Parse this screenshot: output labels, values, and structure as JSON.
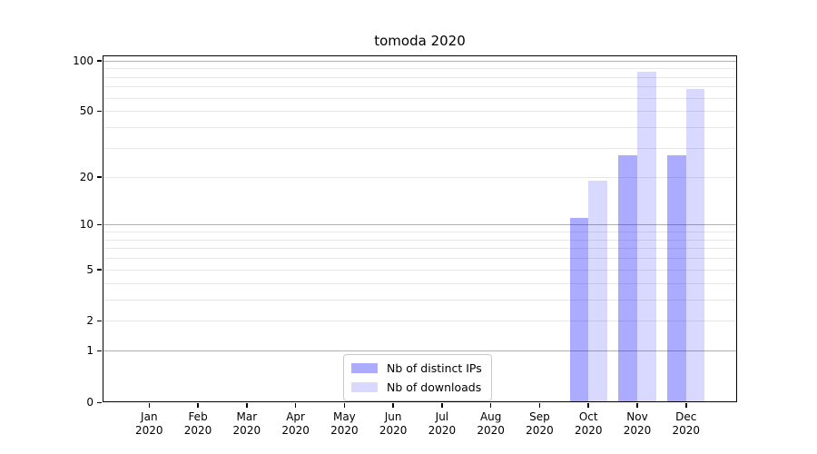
{
  "title": "tomoda 2020",
  "chart_data": {
    "type": "bar",
    "title": "tomoda 2020",
    "categories": [
      "Jan 2020",
      "Feb 2020",
      "Mar 2020",
      "Apr 2020",
      "May 2020",
      "Jun 2020",
      "Jul 2020",
      "Aug 2020",
      "Sep 2020",
      "Oct 2020",
      "Nov 2020",
      "Dec 2020"
    ],
    "series": [
      {
        "name": "Nb of distinct IPs",
        "color": "rgba(0,0,255,0.33)",
        "values": [
          null,
          null,
          null,
          null,
          null,
          null,
          null,
          null,
          null,
          11,
          27,
          27
        ]
      },
      {
        "name": "Nb of downloads",
        "color": "rgba(0,0,255,0.15)",
        "values": [
          null,
          null,
          null,
          null,
          null,
          null,
          null,
          null,
          null,
          19,
          86,
          68
        ]
      }
    ],
    "xlabel": "",
    "ylabel": "",
    "y_axis": {
      "scale": "log1p",
      "range": [
        0,
        107
      ],
      "tick_labels": [
        0,
        1,
        2,
        5,
        10,
        20,
        50,
        100
      ],
      "major_gridlines": [
        1,
        10,
        100
      ],
      "minor_gridlines": [
        2,
        3,
        4,
        5,
        6,
        7,
        8,
        9,
        20,
        30,
        40,
        50,
        60,
        70,
        80,
        90
      ]
    },
    "grid": true,
    "legend": {
      "position": "lower center",
      "items": [
        "Nb of distinct IPs",
        "Nb of downloads"
      ]
    },
    "colors": {
      "bar_dark": "#abacfa",
      "bar_light": "#dcdcfc",
      "major_grid": "#b0b0b0",
      "minor_grid": "#e7e7e7",
      "axis": "#000000"
    }
  }
}
